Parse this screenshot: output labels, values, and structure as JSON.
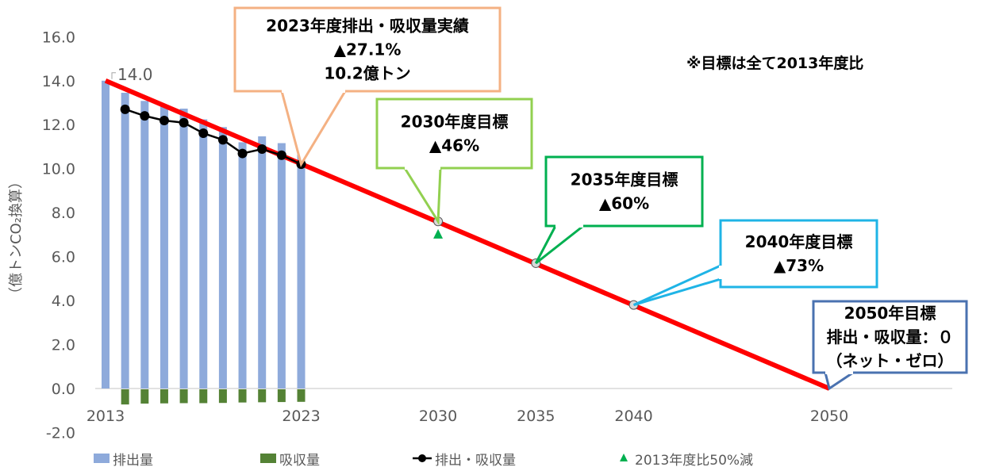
{
  "chart_data": {
    "type": "bar+line",
    "ylabel": "（億トンCO₂換算）",
    "ylim": [
      -2.0,
      16.0
    ],
    "yticks": [
      "16.0",
      "14.0",
      "12.0",
      "10.0",
      "8.0",
      "6.0",
      "4.0",
      "2.0",
      "0.0",
      "-2.0"
    ],
    "ytick_values": [
      16,
      14,
      12,
      10,
      8,
      6,
      4,
      2,
      0,
      -2
    ],
    "xlim": [
      2013,
      2050
    ],
    "xticks": [
      "2013",
      "2023",
      "2030",
      "2035",
      "2040",
      "2050"
    ],
    "xtick_values": [
      2013,
      2023,
      2030,
      2035,
      2040,
      2050
    ],
    "grid": false,
    "legend_position": "bottom",
    "years": [
      2013,
      2014,
      2015,
      2016,
      2017,
      2018,
      2019,
      2020,
      2021,
      2022,
      2023
    ],
    "series": [
      {
        "name": "排出量",
        "type": "bar",
        "color": "#8eaadb",
        "values": [
          14.0,
          13.45,
          13.08,
          12.9,
          12.73,
          12.24,
          11.89,
          11.2,
          11.47,
          11.16,
          10.65
        ]
      },
      {
        "name": "吸収量",
        "type": "bar",
        "color": "#548235",
        "values": [
          null,
          -0.69,
          -0.65,
          -0.64,
          -0.63,
          -0.63,
          -0.62,
          -0.6,
          -0.59,
          -0.58,
          -0.57
        ]
      },
      {
        "name": "排出・吸収量",
        "type": "line",
        "color": "#000000",
        "values": [
          null,
          12.7,
          12.4,
          12.19,
          12.09,
          11.61,
          11.31,
          10.69,
          10.89,
          10.61,
          10.2
        ]
      },
      {
        "name": "2013年度比50%減",
        "type": "scatter",
        "color": "#00b050",
        "marker": "triangle",
        "x": [
          2030
        ],
        "values": [
          7.0
        ]
      }
    ],
    "target_line": {
      "color": "#ff0000",
      "x": [
        2013,
        2050
      ],
      "values": [
        14.0,
        0.0
      ]
    },
    "target_markers": {
      "x": [
        2030,
        2035,
        2040
      ],
      "values": [
        7.6,
        5.7,
        3.8
      ]
    },
    "data_label_2013": "14.0",
    "annotations": [
      {
        "lines": [
          "2023年度排出・吸収量実績",
          "▲27.1%",
          "10.2億トン"
        ],
        "color": "#f4b183",
        "x": 2023,
        "value": 10.2
      },
      {
        "lines": [
          "2030年度目標",
          "▲46%"
        ],
        "color": "#92d050",
        "x": 2030,
        "value": 7.6
      },
      {
        "lines": [
          "2035年度目標",
          "▲60%"
        ],
        "color": "#00b050",
        "x": 2035,
        "value": 5.7
      },
      {
        "lines": [
          "2040年度目標",
          "▲73%"
        ],
        "color": "#1fb4e6",
        "x": 2040,
        "value": 3.8
      },
      {
        "lines": [
          "2050年目標",
          "排出・吸収量：０",
          "（ネット・ゼロ）"
        ],
        "color": "#4a72b0",
        "x": 2050,
        "value": 0
      }
    ],
    "note": "※目標は全て2013年度比",
    "axis_negative_color": "#ff0000"
  }
}
